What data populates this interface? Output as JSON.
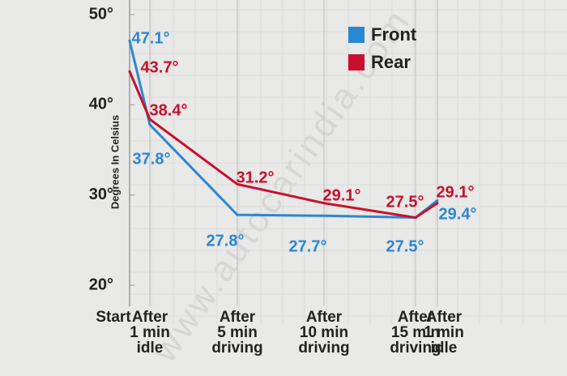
{
  "chart_data": {
    "type": "line",
    "y_label": "Degrees In Celsius",
    "watermark": "www.autocarindia.com",
    "categories": [
      "Start",
      "After\n1 min\nidle",
      "After\n5 min\ndriving",
      "After\n10 min\ndriving",
      "After\n15 min\ndriving",
      "After\n1 min\nidle"
    ],
    "series": [
      {
        "name": "Front",
        "color": "#2b87d3",
        "values": [
          47.1,
          37.8,
          27.8,
          27.7,
          27.5,
          29.4
        ],
        "value_labels": [
          "47.1°",
          "37.8°",
          "27.8°",
          "27.7°",
          "27.5°",
          "29.4°"
        ]
      },
      {
        "name": "Rear",
        "color": "#c8102e",
        "values": [
          43.7,
          38.4,
          31.2,
          29.1,
          27.5,
          29.1
        ],
        "value_labels": [
          "43.7°",
          "38.4°",
          "31.2°",
          "29.1°",
          "27.5°",
          "29.1°"
        ]
      }
    ],
    "ylim": [
      20,
      50
    ],
    "yticks": [
      {
        "value": 20,
        "label": "20°"
      },
      {
        "value": 30,
        "label": "30°"
      },
      {
        "value": 40,
        "label": "40°"
      },
      {
        "value": 50,
        "label": "50°"
      }
    ],
    "grid": true,
    "legend": "top-right"
  }
}
